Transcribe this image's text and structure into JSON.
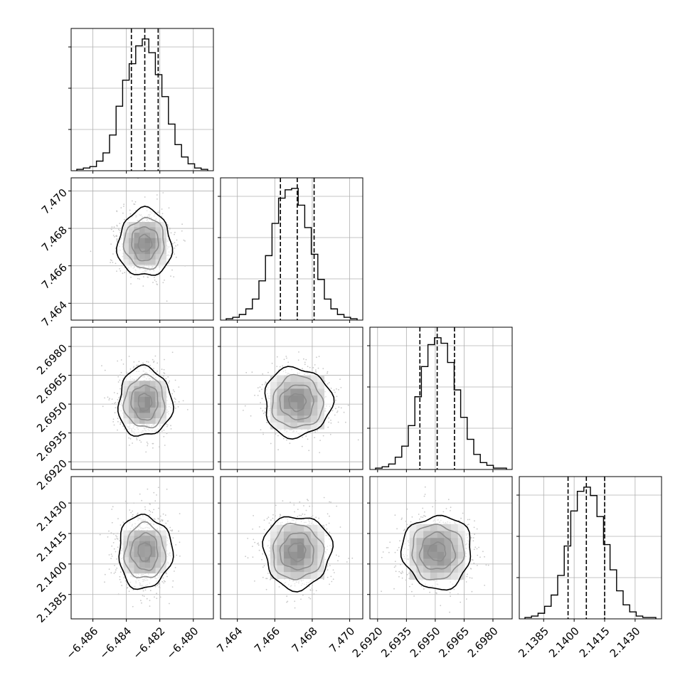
{
  "chart_data": {
    "type": "corner",
    "grid": true,
    "colors": {
      "line": "#000000",
      "grid": "#b0b0b0",
      "scatter": "#c8c8c8"
    },
    "params": [
      {
        "center": -6.4829,
        "range": [
          -6.4873,
          -6.4788
        ],
        "quantiles": [
          -6.4837,
          -6.4829,
          -6.4821
        ],
        "ticks": [
          "-6.486",
          "-6.484",
          "-6.482",
          "-6.480"
        ],
        "tick_values": [
          -6.486,
          -6.484,
          -6.482,
          -6.48
        ]
      },
      {
        "center": 7.4672,
        "range": [
          7.4631,
          7.4707
        ],
        "quantiles": [
          7.4663,
          7.4672,
          7.4681
        ],
        "ticks": [
          "7.464",
          "7.466",
          "7.468",
          "7.470"
        ],
        "tick_values": [
          7.464,
          7.466,
          7.468,
          7.47
        ]
      },
      {
        "center": 2.6951,
        "range": [
          2.6916,
          2.699
        ],
        "quantiles": [
          2.6942,
          2.6951,
          2.696
        ],
        "ticks": [
          "2.6920",
          "2.6935",
          "2.6950",
          "2.6965",
          "2.6980"
        ],
        "tick_values": [
          2.692,
          2.6935,
          2.695,
          2.6965,
          2.698
        ]
      },
      {
        "center": 2.1406,
        "range": [
          2.1373,
          2.1443
        ],
        "quantiles": [
          2.1397,
          2.1406,
          2.1415
        ],
        "ticks": [
          "2.1385",
          "2.1400",
          "2.1415",
          "2.1430"
        ],
        "tick_values": [
          2.1385,
          2.14,
          2.1415,
          2.143
        ]
      }
    ],
    "histograms": [
      {
        "counts": [
          1,
          2,
          3,
          7,
          13,
          26,
          47,
          66,
          78,
          91,
          96,
          86,
          70,
          54,
          34,
          19,
          10,
          5,
          2,
          1
        ]
      },
      {
        "counts": [
          1,
          2,
          4,
          8,
          15,
          28,
          46,
          69,
          87,
          93,
          94,
          82,
          66,
          47,
          29,
          15,
          8,
          4,
          2,
          1
        ]
      },
      {
        "counts": [
          1,
          2,
          4,
          9,
          17,
          32,
          53,
          75,
          91,
          96,
          92,
          78,
          58,
          38,
          22,
          11,
          5,
          3,
          1,
          1
        ]
      },
      {
        "counts": [
          1,
          2,
          4,
          9,
          17,
          31,
          52,
          77,
          91,
          94,
          88,
          73,
          53,
          35,
          20,
          10,
          5,
          2,
          1,
          1
        ]
      }
    ]
  }
}
